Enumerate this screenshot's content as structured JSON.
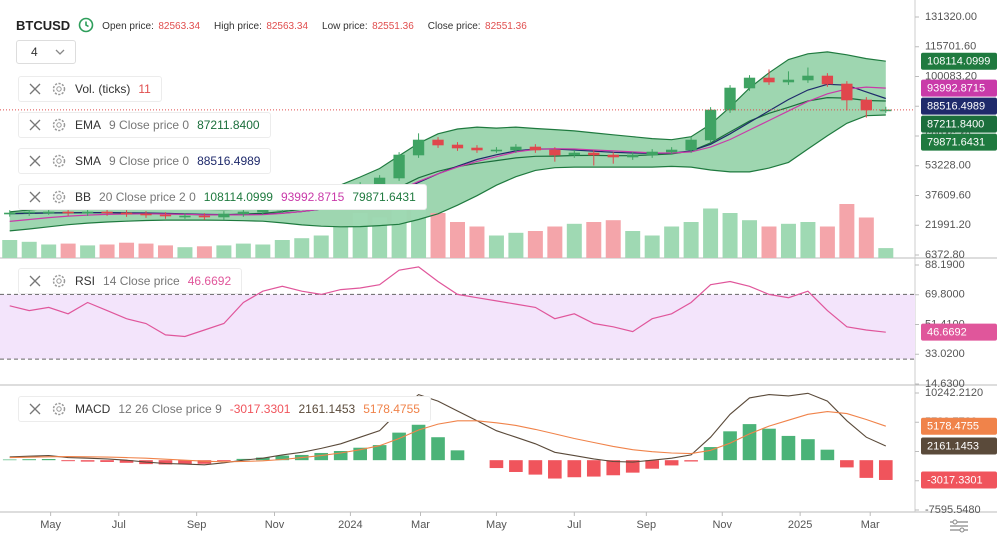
{
  "header": {
    "symbol": "BTCUSD",
    "interval": "4",
    "stats": [
      {
        "label": "Open price:",
        "value": "82563.34"
      },
      {
        "label": "High price:",
        "value": "82563.34"
      },
      {
        "label": "Low price:",
        "value": "82551.36"
      },
      {
        "label": "Close price:",
        "value": "82551.36"
      }
    ]
  },
  "chart_data": [
    {
      "type": "candlestick",
      "xlim": [
        -0.5,
        46.5
      ],
      "ylim": [
        6372.8,
        131320
      ],
      "yticks": [
        {
          "value": 131320,
          "label": "131320.00"
        },
        {
          "value": 115701.6,
          "label": "115701.60"
        },
        {
          "value": 100083.2,
          "label": "100083.20"
        },
        {
          "value": 84464.8,
          "label": "84464.80"
        },
        {
          "value": 68846.4,
          "label": "68846.40"
        },
        {
          "value": 53228,
          "label": "53228.00"
        },
        {
          "value": 37609.6,
          "label": "37609.60"
        },
        {
          "value": 21991.2,
          "label": "21991.20"
        },
        {
          "value": 6372.8,
          "label": "6372.80"
        }
      ],
      "up_color": "#3fa363",
      "down_color": "#e0474c",
      "last_price_color": "#e04e4e",
      "open": [
        28000,
        28420,
        28945,
        28945,
        28420,
        28945,
        28420,
        27895,
        27370,
        26845,
        26845,
        26320,
        27895,
        28945,
        29995,
        32620,
        35245,
        37345,
        40495,
        43120,
        46795,
        58870,
        66745,
        64120,
        62545,
        61495,
        61495,
        63070,
        61495,
        58870,
        59920,
        58870,
        57820,
        58870,
        60445,
        61495,
        66745,
        82495,
        94045,
        99295,
        97195,
        98245,
        100345,
        96145,
        87745,
        82495
      ],
      "high": [
        29920,
        30445,
        30445,
        30445,
        30445,
        30445,
        29920,
        29395,
        28870,
        28345,
        28345,
        29395,
        30445,
        31495,
        34120,
        36745,
        38845,
        41995,
        44620,
        48295,
        60370,
        70245,
        68245,
        65620,
        64045,
        62995,
        64570,
        64570,
        62995,
        61420,
        61420,
        60370,
        60370,
        61945,
        62995,
        68245,
        83995,
        95545,
        100795,
        103795,
        102795,
        104795,
        101845,
        97645,
        89245,
        84200
      ],
      "low": [
        26500,
        26920,
        27445,
        26920,
        26920,
        26920,
        26395,
        25870,
        25345,
        25345,
        24820,
        24820,
        26395,
        27445,
        28495,
        31120,
        33745,
        35845,
        38995,
        41620,
        45295,
        57370,
        62620,
        61045,
        59995,
        59995,
        59995,
        59995,
        55370,
        57370,
        53370,
        54320,
        56320,
        57370,
        58945,
        59995,
        65245,
        80995,
        92545,
        95695,
        95695,
        96745,
        94645,
        82245,
        78495,
        80995
      ],
      "close": [
        28420,
        28945,
        28945,
        28420,
        28945,
        28420,
        27895,
        27370,
        26845,
        26845,
        26320,
        27895,
        28945,
        29995,
        32620,
        35245,
        37345,
        40495,
        43120,
        46795,
        58870,
        66745,
        64120,
        62545,
        61495,
        61495,
        63070,
        61495,
        58870,
        59920,
        58870,
        57820,
        58870,
        60445,
        61495,
        66745,
        82495,
        94045,
        99295,
        97195,
        98245,
        100345,
        96145,
        87745,
        82495,
        82551.36
      ],
      "volume": {
        "name": "Vol. (ticks)",
        "value_color": "#e04e4e",
        "lim": [
          0,
          100
        ],
        "up_color": "#9fd9b3",
        "down_color": "#f4a5aa",
        "values": [
          20,
          18,
          15,
          16,
          14,
          15,
          17,
          16,
          14,
          12,
          13,
          14,
          16,
          15,
          20,
          22,
          25,
          35,
          50,
          45,
          62,
          65,
          50,
          40,
          35,
          25,
          28,
          30,
          35,
          38,
          40,
          42,
          30,
          25,
          35,
          40,
          55,
          50,
          42,
          35,
          38,
          40,
          35,
          60,
          45,
          11
        ]
      },
      "indicators": [
        {
          "name": "EMA",
          "params": "9 Close price 0",
          "color": "#1b6e3c",
          "value_label": "87211.8400",
          "values": [
            28200,
            28400,
            28550,
            28520,
            28600,
            28560,
            28400,
            28200,
            27950,
            27750,
            27480,
            27550,
            27850,
            28280,
            29150,
            30370,
            31770,
            33510,
            35430,
            37700,
            41930,
            46890,
            50340,
            52780,
            54520,
            55910,
            57340,
            58170,
            58310,
            58630,
            58680,
            58510,
            58580,
            58950,
            59460,
            60920,
            65240,
            70990,
            76650,
            80760,
            83930,
            87210,
            89000,
            88750,
            87500,
            87211.84
          ]
        },
        {
          "name": "SMA",
          "params": "9 Close price 0",
          "color": "#1f2a6b",
          "values": [
            28000,
            28200,
            28400,
            28550,
            28650,
            28650,
            28550,
            28400,
            28200,
            28000,
            27750,
            27600,
            27650,
            27800,
            28300,
            29200,
            30400,
            32000,
            34000,
            36500,
            40000,
            44500,
            49000,
            53000,
            56500,
            59000,
            61000,
            62000,
            62000,
            61500,
            60900,
            60300,
            59900,
            59700,
            59800,
            61000,
            64500,
            70000,
            76000,
            82000,
            88000,
            93000,
            96000,
            95500,
            92000,
            88516.4989
          ]
        },
        {
          "name": "BB",
          "params": "20 Close price 2 0",
          "fill": "#5dbb7c",
          "series": [
            {
              "color": "#1f7a3f",
              "values": [
                29000,
                30000,
                30800,
                31300,
                31500,
                31700,
                31700,
                31500,
                31100,
                30700,
                30300,
                30200,
                30400,
                31100,
                33200,
                36200,
                39500,
                43200,
                47300,
                51800,
                58500,
                65000,
                70000,
                72500,
                73500,
                73000,
                73500,
                72800,
                72200,
                71500,
                70500,
                69500,
                68500,
                67500,
                66900,
                68500,
                75000,
                84000,
                94000,
                102000,
                109000,
                112000,
                113000,
                111500,
                109500,
                108114.0999
              ]
            },
            {
              "color": "#c93aa9",
              "values": [
                24000,
                25000,
                26000,
                26800,
                27300,
                27700,
                27900,
                28000,
                27900,
                27700,
                27500,
                27400,
                27400,
                27600,
                28200,
                29200,
                30500,
                32200,
                34300,
                36800,
                40500,
                45000,
                49000,
                52500,
                55500,
                58000,
                60500,
                61800,
                62200,
                62000,
                61500,
                61000,
                60500,
                60000,
                59900,
                60500,
                63000,
                67000,
                72000,
                77000,
                82000,
                87000,
                91000,
                93500,
                94500,
                93992.8715
              ]
            },
            {
              "color": "#1f7a3f",
              "values": [
                19000,
                20000,
                21200,
                22300,
                23100,
                23700,
                24100,
                24500,
                24700,
                24700,
                24700,
                24600,
                24400,
                24100,
                23200,
                22200,
                21500,
                21200,
                21300,
                21800,
                22500,
                25000,
                28000,
                32500,
                37500,
                43000,
                47500,
                50800,
                52200,
                52500,
                52500,
                52500,
                52500,
                52500,
                52900,
                52500,
                51000,
                50000,
                50000,
                52000,
                55000,
                62000,
                69000,
                75500,
                79500,
                79871.6431
              ]
            }
          ]
        }
      ]
    },
    {
      "type": "line",
      "name": "RSI",
      "params": "14 Close price",
      "xlim": [
        -0.5,
        46.5
      ],
      "ylim": [
        14.63,
        88.19
      ],
      "yticks": [
        {
          "value": 88.19,
          "label": "88.1900"
        },
        {
          "value": 69.8,
          "label": "69.8000"
        },
        {
          "value": 51.41,
          "label": "51.4100"
        },
        {
          "value": 33.02,
          "label": "33.0200"
        },
        {
          "value": 14.63,
          "label": "14.6300"
        }
      ],
      "levels": [
        70,
        30
      ],
      "band_color": "#f3e4fb",
      "series": [
        {
          "color": "#e0569b",
          "values": [
            63,
            60,
            62,
            58,
            65,
            60,
            55,
            52,
            45,
            44,
            48,
            52,
            65,
            72,
            75,
            72,
            70,
            73,
            74,
            76,
            85,
            87,
            78,
            70,
            68,
            66,
            64,
            62,
            55,
            58,
            52,
            50,
            47,
            55,
            58,
            65,
            76,
            78,
            75,
            70,
            68,
            72,
            60,
            50,
            48,
            46.6692
          ]
        }
      ]
    },
    {
      "type": "macd",
      "name": "MACD",
      "params": "12 26 Close price 9",
      "xlim": [
        -0.5,
        46.5
      ],
      "ylim": [
        -7595.548,
        10242.212
      ],
      "yticks": [
        {
          "value": 10242.212,
          "label": "10242.2120"
        },
        {
          "value": 5782.772,
          "label": "5782.7720"
        },
        {
          "value": 1323.332,
          "label": "1323.3320"
        },
        {
          "value": -3136.108,
          "label": "-3136.1080"
        },
        {
          "value": -7595.548,
          "label": "-7595.5480"
        }
      ],
      "xticks": [
        {
          "value": 2.1,
          "label": "May"
        },
        {
          "value": 5.6,
          "label": "Jul"
        },
        {
          "value": 9.6,
          "label": "Sep"
        },
        {
          "value": 13.6,
          "label": "Nov"
        },
        {
          "value": 17.5,
          "label": "2024"
        },
        {
          "value": 21.1,
          "label": "Mar"
        },
        {
          "value": 25.0,
          "label": "May"
        },
        {
          "value": 29.0,
          "label": "Jul"
        },
        {
          "value": 32.7,
          "label": "Sep"
        },
        {
          "value": 36.6,
          "label": "Nov"
        },
        {
          "value": 40.6,
          "label": "2025"
        },
        {
          "value": 44.2,
          "label": "Mar"
        }
      ],
      "histogram": {
        "up_color": "#4bb378",
        "down_color": "#f0545c",
        "values": [
          100,
          150,
          180,
          -150,
          -220,
          -270,
          -400,
          -600,
          -650,
          -600,
          -550,
          -150,
          200,
          400,
          700,
          800,
          1100,
          1400,
          1900,
          2300,
          4200,
          5400,
          3500,
          1500,
          0,
          -1200,
          -1800,
          -2200,
          -2800,
          -2600,
          -2500,
          -2300,
          -1900,
          -1300,
          -800,
          -200,
          2000,
          4400,
          5500,
          4800,
          3700,
          3200,
          1600,
          -1100,
          -2700,
          -3017.3301
        ]
      },
      "series": [
        {
          "color": "#5a4a3a",
          "values": [
            500,
            600,
            700,
            400,
            300,
            200,
            0,
            -300,
            -500,
            -600,
            -700,
            -400,
            0,
            300,
            800,
            1200,
            1800,
            2500,
            3500,
            4500,
            7500,
            10000,
            9000,
            7500,
            6000,
            4500,
            3500,
            2500,
            1200,
            700,
            200,
            -200,
            -300,
            0,
            300,
            800,
            3500,
            7000,
            9500,
            10000,
            9800,
            10200,
            9000,
            6000,
            3500,
            2161.1453
          ]
        },
        {
          "color": "#f0834a",
          "values": [
            400,
            450,
            520,
            550,
            520,
            470,
            400,
            300,
            150,
            0,
            -150,
            -250,
            -200,
            -100,
            100,
            400,
            700,
            1100,
            1600,
            2200,
            3300,
            4600,
            5500,
            6000,
            6000,
            5700,
            5300,
            4700,
            4000,
            3300,
            2700,
            2100,
            1600,
            1300,
            1100,
            1000,
            1500,
            2600,
            4000,
            5200,
            6100,
            7000,
            7400,
            7100,
            6200,
            5178.4755
          ]
        }
      ]
    }
  ]
}
